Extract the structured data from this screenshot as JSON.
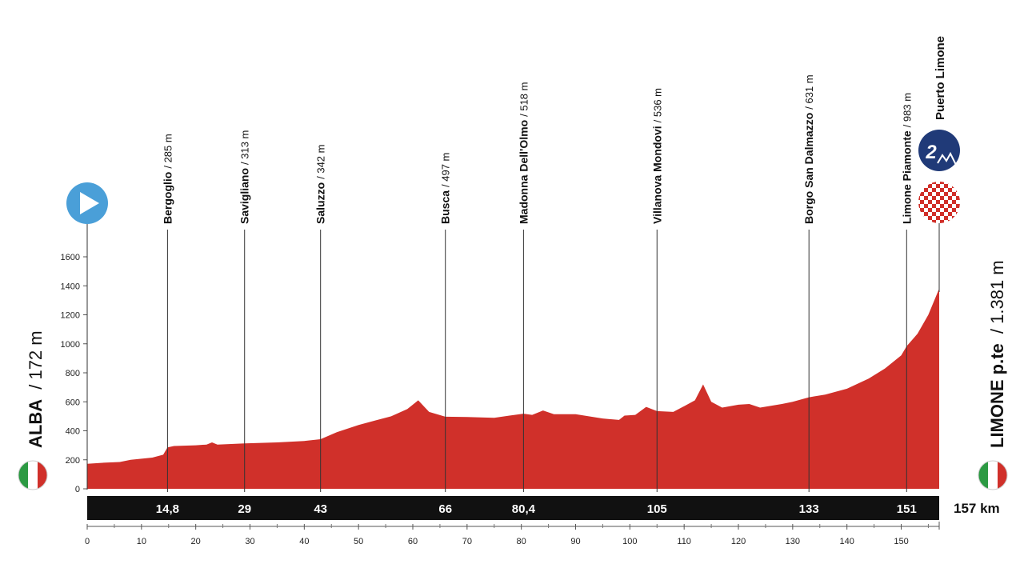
{
  "start": {
    "name": "ALBA",
    "alt": "/ 172 m",
    "flag": "italy-flag"
  },
  "finish": {
    "name": "LIMONE p.te",
    "alt": "/ 1.381 m",
    "flag": "italy-flag"
  },
  "total_km_label": "157 km",
  "climb": {
    "category": "2",
    "name": "Puerto Limone"
  },
  "colors": {
    "profile": "#d0302a",
    "bar": "#111111",
    "start_icon": "#4a9fd8",
    "climb_badge": "#203a78",
    "finish_check": "#d0302a"
  },
  "chart_data": {
    "type": "area",
    "title": "",
    "xlabel": "",
    "ylabel": "",
    "xlim": [
      0,
      157
    ],
    "ylim": [
      0,
      1600
    ],
    "yticks": [
      0,
      200,
      400,
      600,
      800,
      1000,
      1200,
      1400,
      1600
    ],
    "xticks": [
      0,
      10,
      20,
      30,
      40,
      50,
      60,
      70,
      80,
      90,
      100,
      110,
      120,
      130,
      140,
      150
    ],
    "series": [
      {
        "x": [
          0,
          3,
          6,
          8,
          12,
          14,
          14.8,
          16,
          20,
          22,
          23,
          24,
          29,
          35,
          40,
          43,
          46,
          50,
          53,
          56,
          59,
          61,
          63,
          66,
          70,
          75,
          80.4,
          82,
          84,
          86,
          90,
          95,
          98,
          99,
          101,
          103,
          105,
          108,
          110,
          112,
          113.5,
          115,
          117,
          120,
          122,
          124,
          128,
          130,
          133,
          136,
          140,
          144,
          147,
          150,
          151,
          153,
          155,
          157
        ],
        "values": [
          172,
          180,
          185,
          200,
          215,
          235,
          285,
          295,
          300,
          305,
          320,
          305,
          313,
          320,
          330,
          342,
          390,
          440,
          470,
          500,
          550,
          610,
          530,
          497,
          495,
          490,
          518,
          510,
          540,
          515,
          515,
          485,
          475,
          505,
          510,
          565,
          536,
          530,
          570,
          610,
          720,
          600,
          560,
          580,
          585,
          560,
          585,
          600,
          631,
          650,
          690,
          760,
          830,
          920,
          983,
          1070,
          1200,
          1381
        ]
      }
    ],
    "waypoints": [
      {
        "name": "Bergoglio",
        "alt": "/ 285 m",
        "km": 14.8,
        "km_label": "14,8"
      },
      {
        "name": "Savigliano",
        "alt": "/ 313 m",
        "km": 29,
        "km_label": "29"
      },
      {
        "name": "Saluzzo",
        "alt": "/ 342 m",
        "km": 43,
        "km_label": "43"
      },
      {
        "name": "Busca",
        "alt": "/ 497 m",
        "km": 66,
        "km_label": "66"
      },
      {
        "name": "Madonna Dell'Olmo",
        "alt": "/ 518 m",
        "km": 80.4,
        "km_label": "80,4"
      },
      {
        "name": "Villanova Mondovi",
        "alt": "/ 536 m",
        "km": 105,
        "km_label": "105"
      },
      {
        "name": "Borgo San Dalmazzo",
        "alt": "/ 631 m",
        "km": 133,
        "km_label": "133"
      },
      {
        "name": "Limone Piamonte",
        "alt": "/ 983 m",
        "km": 151,
        "km_label": "151"
      }
    ]
  }
}
